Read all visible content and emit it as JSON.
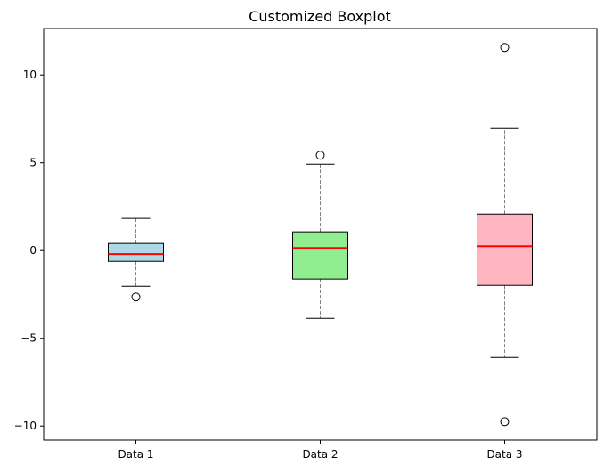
{
  "chart_data": {
    "type": "boxplot",
    "title": "Customized Boxplot",
    "xlabel": "",
    "ylabel": "",
    "ylim": [
      -10.8,
      12.65
    ],
    "yticks": [
      -10,
      -5,
      0,
      5,
      10
    ],
    "ytick_labels": [
      "−10",
      "−5",
      "0",
      "5",
      "10"
    ],
    "grid": false,
    "categories": [
      "Data 1",
      "Data 2",
      "Data 3"
    ],
    "series": [
      {
        "name": "Data 1",
        "color": "#add8e6",
        "whisker_low": -2.03,
        "q1": -0.61,
        "median": -0.2,
        "q3": 0.41,
        "whisker_high": 1.83,
        "outliers": [
          -2.64
        ]
      },
      {
        "name": "Data 2",
        "color": "#90ee90",
        "whisker_low": -3.86,
        "q1": -1.62,
        "median": 0.15,
        "q3": 1.07,
        "whisker_high": 4.92,
        "outliers": [
          5.43
        ]
      },
      {
        "name": "Data 3",
        "color": "#ffb6c1",
        "whisker_low": -6.09,
        "q1": -1.98,
        "median": 0.25,
        "q3": 2.08,
        "whisker_high": 6.95,
        "outliers": [
          11.57,
          -9.75
        ]
      }
    ],
    "median_color": "#ff0000",
    "whisker_style": "dashed-gray"
  }
}
